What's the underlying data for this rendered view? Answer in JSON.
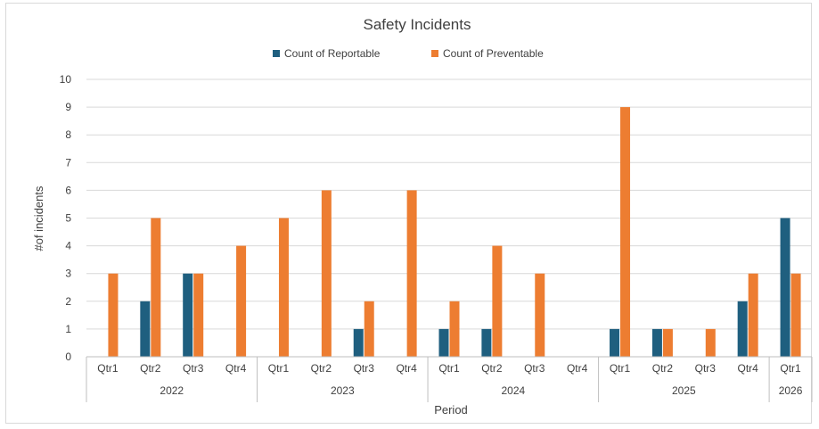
{
  "chart_data": {
    "type": "bar",
    "title": "Safety Incidents",
    "xlabel": "Period",
    "ylabel": "#of incidents",
    "ylim": [
      0,
      10
    ],
    "yticks": [
      0,
      1,
      2,
      3,
      4,
      5,
      6,
      7,
      8,
      9,
      10
    ],
    "grid": true,
    "legend_position": "top",
    "groups": [
      {
        "year": "2022",
        "quarters": [
          "Qtr1",
          "Qtr2",
          "Qtr3",
          "Qtr4"
        ]
      },
      {
        "year": "2023",
        "quarters": [
          "Qtr1",
          "Qtr2",
          "Qtr3",
          "Qtr4"
        ]
      },
      {
        "year": "2024",
        "quarters": [
          "Qtr1",
          "Qtr2",
          "Qtr3",
          "Qtr4"
        ]
      },
      {
        "year": "2025",
        "quarters": [
          "Qtr1",
          "Qtr2",
          "Qtr3",
          "Qtr4"
        ]
      },
      {
        "year": "2026",
        "quarters": [
          "Qtr1"
        ]
      }
    ],
    "series": [
      {
        "name": "Count of Reportable",
        "color": "#1f5f7f",
        "values": [
          null,
          2,
          3,
          null,
          null,
          null,
          1,
          null,
          1,
          1,
          null,
          null,
          1,
          1,
          null,
          2,
          5
        ]
      },
      {
        "name": "Count of Preventable",
        "color": "#ed7d31",
        "values": [
          3,
          5,
          3,
          4,
          5,
          6,
          2,
          6,
          2,
          4,
          3,
          null,
          9,
          1,
          1,
          3,
          3
        ]
      }
    ]
  }
}
